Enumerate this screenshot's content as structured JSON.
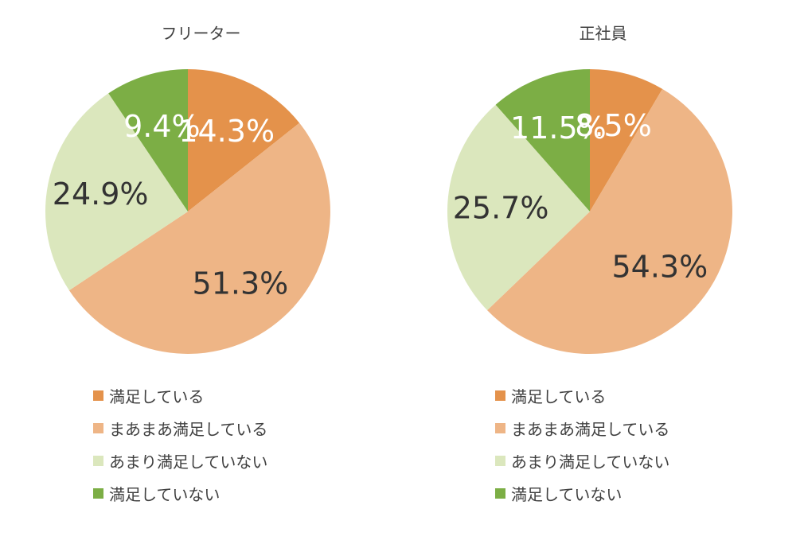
{
  "chart_data": [
    {
      "type": "pie",
      "title": "フリーター",
      "categories": [
        "満足している",
        "まあまあ満足している",
        "あまり満足していない",
        "満足していない"
      ],
      "values": [
        14.3,
        51.3,
        24.9,
        9.4
      ],
      "value_labels": [
        "14.3%",
        "51.3%",
        "24.9%",
        "9.4%"
      ],
      "colors": [
        "#E4924B",
        "#EEB586",
        "#DBE7BD",
        "#7CAE45"
      ],
      "label_colors": [
        "#ffffff",
        "#333333",
        "#333333",
        "#ffffff"
      ],
      "legend_position": "bottom"
    },
    {
      "type": "pie",
      "title": "正社員",
      "categories": [
        "満足している",
        "まあまあ満足している",
        "あまり満足していない",
        "満足していない"
      ],
      "values": [
        8.5,
        54.3,
        25.7,
        11.5
      ],
      "value_labels": [
        "8.5%",
        "54.3%",
        "25.7%",
        "11.5%"
      ],
      "colors": [
        "#E4924B",
        "#EEB586",
        "#DBE7BD",
        "#7CAE45"
      ],
      "label_colors": [
        "#ffffff",
        "#333333",
        "#333333",
        "#ffffff"
      ],
      "legend_position": "bottom"
    }
  ]
}
